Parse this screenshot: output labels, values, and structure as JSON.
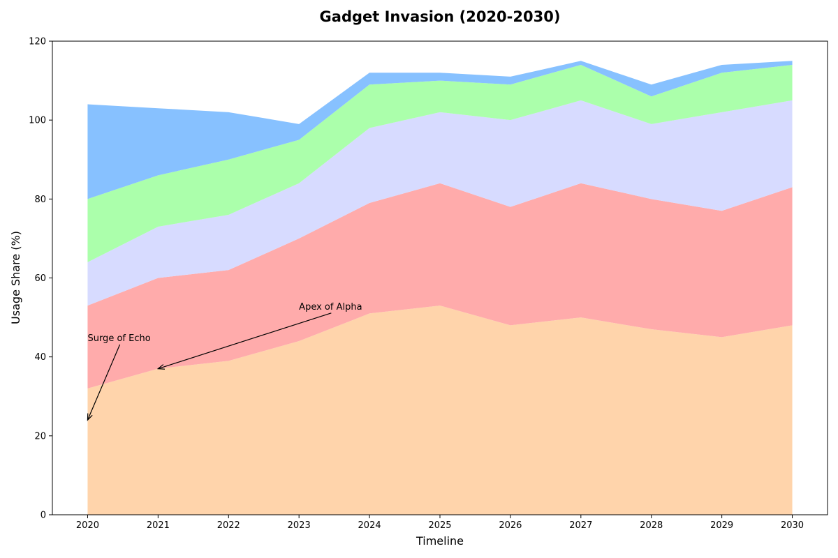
{
  "chart_data": {
    "type": "area",
    "stacked": true,
    "title": "Gadget Invasion (2020-2030)",
    "xlabel": "Timeline",
    "ylabel": "Usage Share (%)",
    "x": [
      2020,
      2021,
      2022,
      2023,
      2024,
      2025,
      2026,
      2027,
      2028,
      2029,
      2030
    ],
    "xlim": [
      2019.5,
      2030.5
    ],
    "ylim": [
      0,
      120
    ],
    "yticks": [
      0,
      20,
      40,
      60,
      80,
      100,
      120
    ],
    "grid": false,
    "legend": "none",
    "series": [
      {
        "color": "#ffd4ab",
        "values": [
          32,
          37,
          39,
          44,
          51,
          53,
          48,
          50,
          47,
          45,
          48
        ]
      },
      {
        "color": "#ffabab",
        "values": [
          21,
          23,
          23,
          26,
          28,
          31,
          30,
          34,
          33,
          32,
          35
        ]
      },
      {
        "color": "#d7dbff",
        "values": [
          11,
          13,
          14,
          14,
          19,
          18,
          22,
          21,
          19,
          25,
          22
        ]
      },
      {
        "color": "#abffab",
        "values": [
          16,
          13,
          14,
          11,
          11,
          8,
          9,
          9,
          7,
          10,
          9
        ]
      },
      {
        "color": "#87c1ff",
        "values": [
          24,
          17,
          12,
          4,
          3,
          2,
          2,
          1,
          3,
          2,
          1
        ]
      }
    ],
    "annotations": [
      {
        "text": "Surge of Echo",
        "point": [
          2020,
          24
        ],
        "text_at": [
          2020,
          44
        ]
      },
      {
        "text": "Apex of Alpha",
        "point": [
          2021,
          37
        ],
        "text_at": [
          2023,
          52
        ]
      }
    ]
  }
}
